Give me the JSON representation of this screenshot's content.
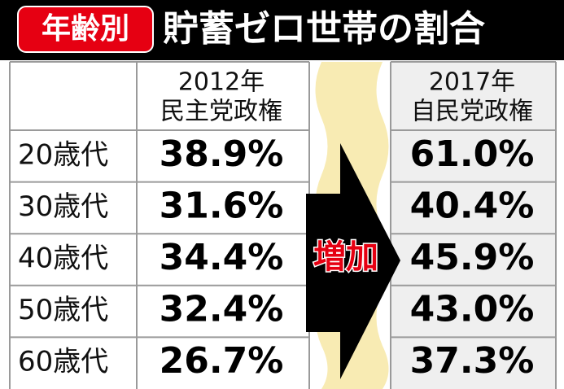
{
  "header": {
    "badge": "年齢別",
    "title": "貯蓄ゼロ世帯の割合"
  },
  "table": {
    "columns": [
      {
        "year": "2012年",
        "label": "民主党政権"
      },
      {
        "year": "2017年",
        "label": "自民党政権"
      }
    ],
    "rows": [
      [
        "20歳代",
        "38.9%",
        "61.0%"
      ],
      [
        "30歳代",
        "31.6%",
        "40.4%"
      ],
      [
        "40歳代",
        "34.4%",
        "45.9%"
      ],
      [
        "50歳代",
        "32.4%",
        "43.0%"
      ],
      [
        "60歳代",
        "26.7%",
        "37.3%"
      ]
    ],
    "arrow_label": "増加"
  }
}
